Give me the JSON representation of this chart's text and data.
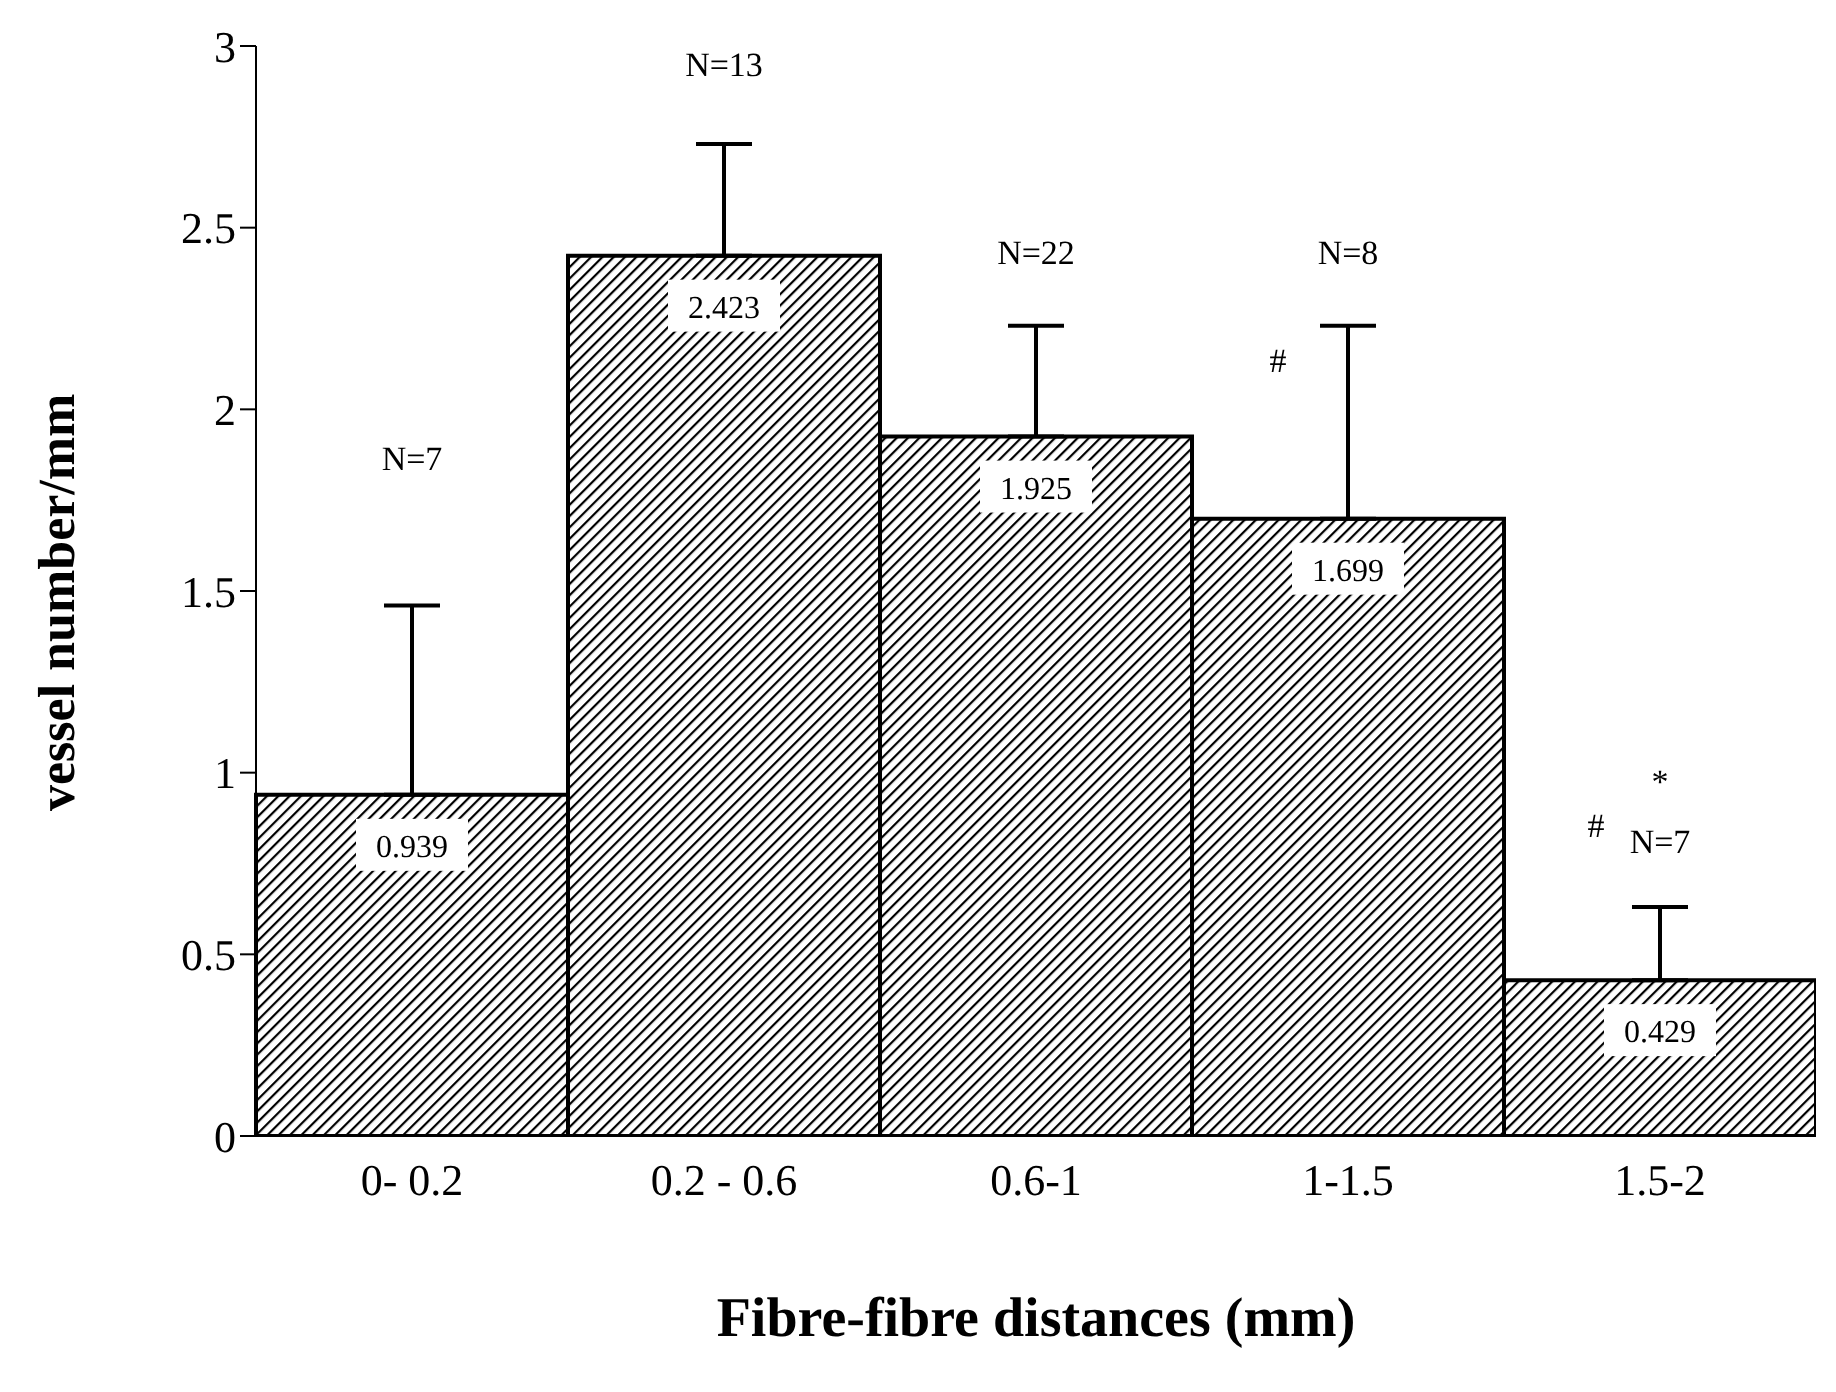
{
  "chart_data": {
    "type": "bar",
    "xlabel": "Fibre-fibre distances (mm)",
    "ylabel": "vessel number/mm",
    "categories": [
      "0- 0.2",
      "0.2 - 0.6",
      "0.6-1",
      "1-1.5",
      "1.5-2"
    ],
    "values": [
      0.939,
      2.423,
      1.925,
      1.699,
      0.429
    ],
    "color": "#000000",
    "errors": [
      [
        0.939,
        1.46
      ],
      [
        2.423,
        2.73
      ],
      [
        1.925,
        2.23
      ],
      [
        1.699,
        2.23
      ],
      [
        0.429,
        0.63
      ]
    ],
    "data_labels": true,
    "ylim": [
      0,
      3
    ],
    "yticks": [
      0,
      0.5,
      1,
      1.5,
      2,
      2.5,
      3
    ],
    "annotations": [
      "N=7",
      "N=13",
      "N=22",
      "N=8",
      "#",
      "N=7",
      "#",
      "*"
    ]
  }
}
